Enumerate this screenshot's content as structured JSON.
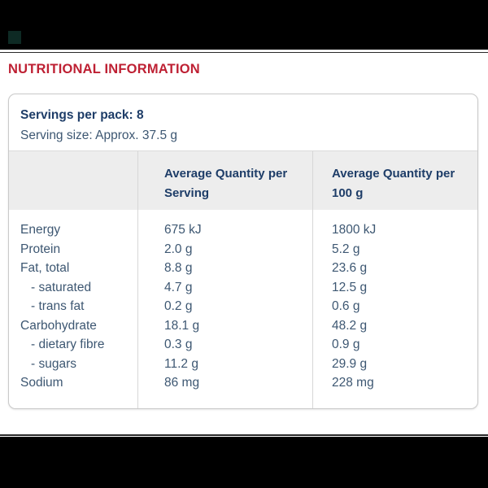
{
  "header": {
    "title": "NUTRITIONAL INFORMATION"
  },
  "panel": {
    "servings_per_pack": "Servings per pack: 8",
    "serving_size": "Serving size: Approx. 37.5 g"
  },
  "table": {
    "columns": {
      "nutrient": "",
      "per_serving": "Average Quantity per Serving",
      "per_100g": "Average Quantity per 100 g"
    },
    "rows": [
      {
        "label": "Energy",
        "per_serving": "675 kJ",
        "per_100g": "1800 kJ",
        "indent": false
      },
      {
        "label": "Protein",
        "per_serving": "2.0 g",
        "per_100g": "5.2 g",
        "indent": false
      },
      {
        "label": "Fat, total",
        "per_serving": "8.8 g",
        "per_100g": "23.6 g",
        "indent": false
      },
      {
        "label": "- saturated",
        "per_serving": "4.7 g",
        "per_100g": "12.5 g",
        "indent": true
      },
      {
        "label": "- trans fat",
        "per_serving": "0.2 g",
        "per_100g": "0.6 g",
        "indent": true
      },
      {
        "label": "Carbohydrate",
        "per_serving": "18.1 g",
        "per_100g": "48.2 g",
        "indent": false
      },
      {
        "label": "- dietary fibre",
        "per_serving": "0.3 g",
        "per_100g": "0.9 g",
        "indent": true
      },
      {
        "label": "- sugars",
        "per_serving": "11.2 g",
        "per_100g": "29.9 g",
        "indent": true
      },
      {
        "label": "Sodium",
        "per_serving": "86 mg",
        "per_100g": "228 mg",
        "indent": false
      }
    ]
  },
  "colors": {
    "heading_red": "#be2033",
    "navy_bold_text": "#1e3d68",
    "body_text": "#3d5772",
    "table_header_bg": "#ededed",
    "panel_border": "#c9c9c9",
    "column_divider": "#d7d7d7",
    "letterbox_black": "#000000",
    "logo_mark_dark_teal": "#0e2a24"
  }
}
